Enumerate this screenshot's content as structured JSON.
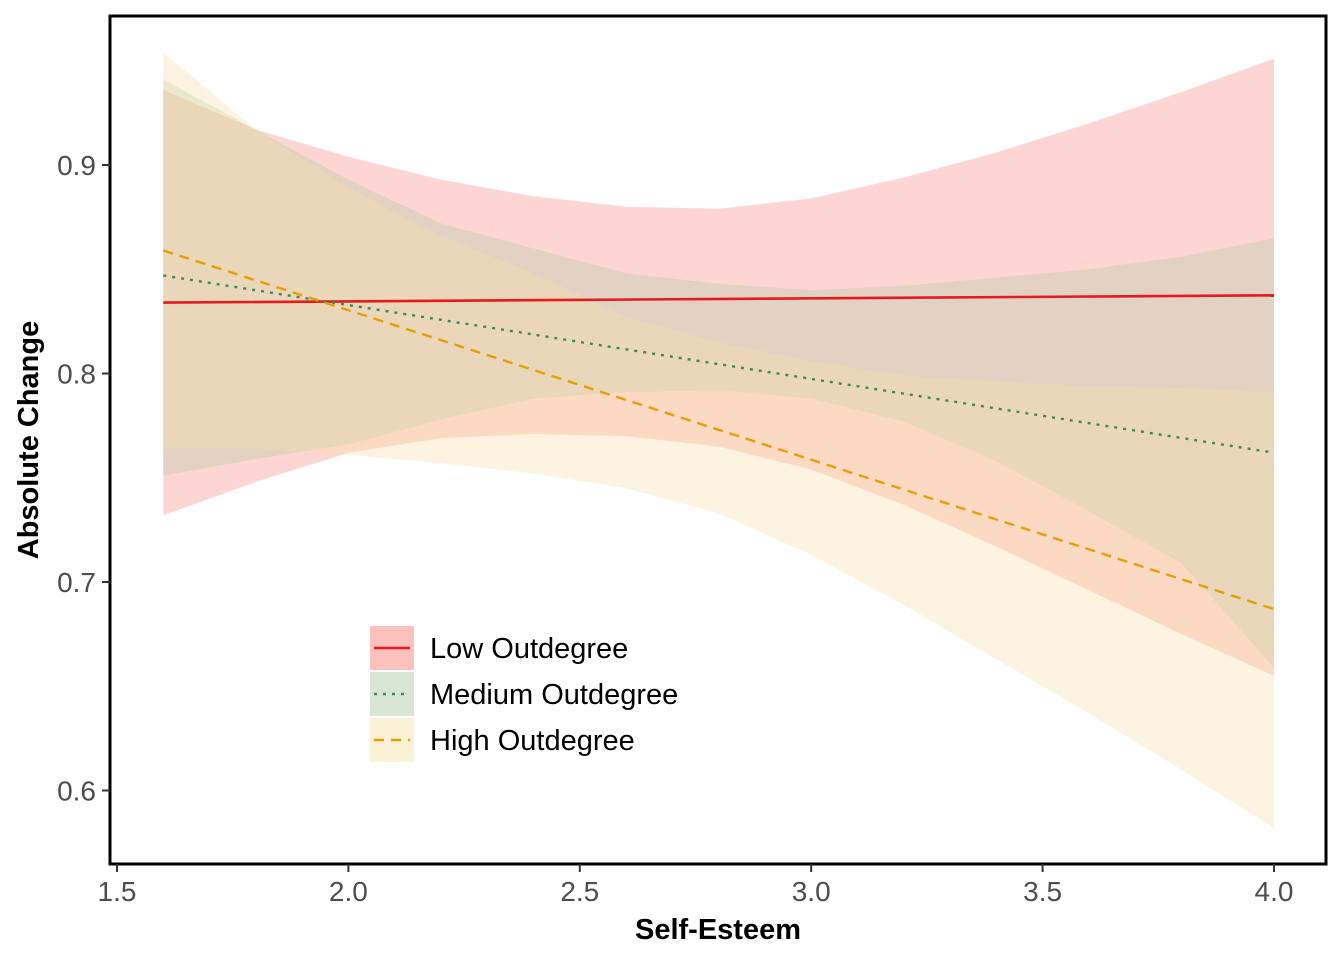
{
  "chart_data": {
    "type": "line",
    "xlabel": "Self-Esteem",
    "ylabel": "Absolute Change",
    "xlim": [
      1.5,
      4.0
    ],
    "ylim": [
      0.6,
      0.9
    ],
    "xticks": [
      "1.5",
      "2.0",
      "2.5",
      "3.0",
      "3.5",
      "4.0"
    ],
    "yticks": [
      "0.6",
      "0.7",
      "0.8",
      "0.9"
    ],
    "grid": false,
    "legend_position": "bottom-left",
    "band_x": [
      1.6,
      1.8,
      2.0,
      2.2,
      2.4,
      2.6,
      2.8,
      3.0,
      3.2,
      3.4,
      3.6,
      3.8,
      4.0
    ],
    "series": [
      {
        "name": "Low Outdegree",
        "line_style": "solid",
        "line_color": "#e41a1c",
        "band_color": "#f8766d",
        "x": [
          1.6,
          4.0
        ],
        "y": [
          0.834,
          0.8375
        ],
        "ci_upper": [
          0.936,
          0.917,
          0.904,
          0.893,
          0.885,
          0.88,
          0.879,
          0.884,
          0.894,
          0.906,
          0.92,
          0.935,
          0.951
        ],
        "ci_lower": [
          0.732,
          0.748,
          0.762,
          0.769,
          0.771,
          0.77,
          0.765,
          0.754,
          0.737,
          0.717,
          0.696,
          0.675,
          0.655
        ]
      },
      {
        "name": "Medium Outdegree",
        "line_style": "dotted",
        "line_color": "#3a8a5c",
        "band_color": "#a8c9a0",
        "x": [
          1.6,
          4.0
        ],
        "y": [
          0.847,
          0.762
        ],
        "ci_upper": [
          0.941,
          0.917,
          0.893,
          0.872,
          0.86,
          0.848,
          0.843,
          0.84,
          0.842,
          0.846,
          0.85,
          0.856,
          0.865
        ],
        "ci_lower": [
          0.751,
          0.759,
          0.766,
          0.778,
          0.788,
          0.791,
          0.792,
          0.788,
          0.777,
          0.758,
          0.734,
          0.709,
          0.659
        ]
      },
      {
        "name": "High Outdegree",
        "line_style": "dashed",
        "line_color": "#e69f00",
        "band_color": "#f5dfa6",
        "x": [
          1.6,
          4.0
        ],
        "y": [
          0.859,
          0.687
        ],
        "ci_upper": [
          0.954,
          0.917,
          0.889,
          0.866,
          0.848,
          0.827,
          0.815,
          0.806,
          0.799,
          0.796,
          0.794,
          0.793,
          0.791
        ],
        "ci_lower": [
          0.764,
          0.764,
          0.761,
          0.757,
          0.752,
          0.745,
          0.733,
          0.713,
          0.689,
          0.663,
          0.637,
          0.61,
          0.582
        ]
      }
    ]
  }
}
